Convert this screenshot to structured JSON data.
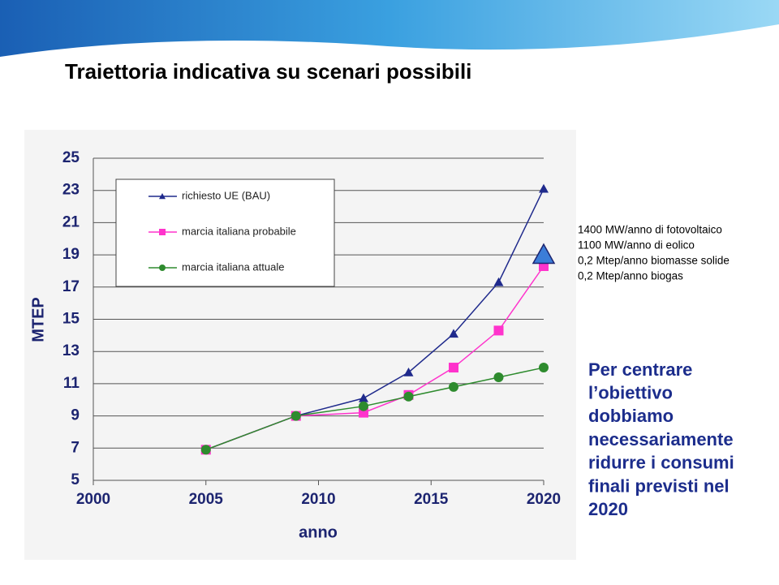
{
  "title": "Traiettoria indicativa su scenari possibili",
  "notes": [
    "1400 MW/anno di fotovoltaico",
    "1100 MW/anno di eolico",
    "0,2 Mtep/anno biomasse solide",
    "0,2 Mtep/anno biogas"
  ],
  "conclusion": [
    "Per centrare",
    "l’obiettivo",
    "dobbiamo",
    "necessariamente",
    "ridurre i consumi",
    "finali previsti nel",
    "2020"
  ],
  "chart_data": {
    "type": "line",
    "x_label": "anno",
    "y_label": "MTEP",
    "x": [
      2005,
      2009,
      2012,
      2014,
      2016,
      2018,
      2020
    ],
    "series": [
      {
        "name": "richiesto UE (BAU)",
        "color": "#1f2a8c",
        "marker": "triangle",
        "values": [
          6.9,
          9.0,
          10.1,
          11.7,
          14.1,
          17.3,
          23.1
        ]
      },
      {
        "name": "marcia italiana probabile",
        "color": "#ff33cc",
        "marker": "square",
        "values": [
          6.9,
          9.0,
          9.2,
          10.3,
          12.0,
          14.3,
          18.3
        ]
      },
      {
        "name": "marcia italiana attuale",
        "color": "#2e8b2e",
        "marker": "circle",
        "values": [
          6.9,
          9.0,
          9.6,
          10.2,
          10.8,
          11.4,
          12.0
        ]
      }
    ],
    "target": {
      "x": 2020,
      "value": 19,
      "color": "#3b7dd8"
    },
    "xlim": [
      2000,
      2020
    ],
    "xticks": [
      2000,
      2005,
      2010,
      2015,
      2020
    ],
    "ylim": [
      5,
      25
    ],
    "yticks": [
      5,
      7,
      9,
      11,
      13,
      15,
      17,
      19,
      21,
      23,
      25
    ],
    "grid": true
  }
}
